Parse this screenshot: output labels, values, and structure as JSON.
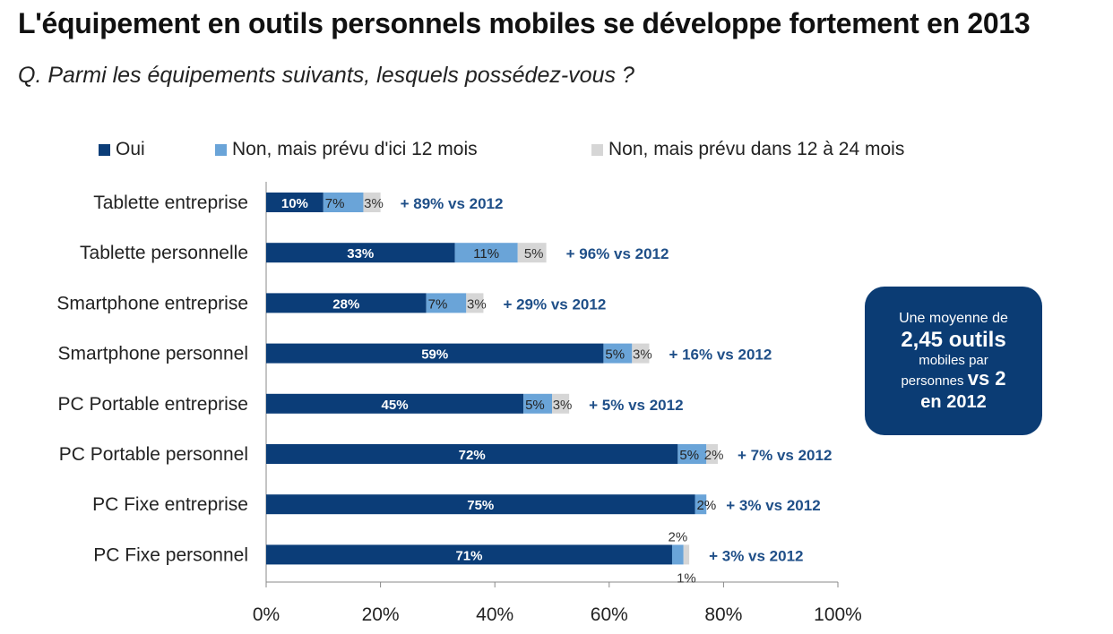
{
  "title": "L'équipement en outils personnels mobiles se développe fortement en 2013",
  "subtitle": "Q. Parmi les équipements suivants, lesquels possédez-vous ?",
  "callout": {
    "line1": "Une moyenne de",
    "line2": "2,45 outils",
    "line3": "mobiles par",
    "line4_prefix": "personnes",
    "line4_bold": "vs 2",
    "line5": "en 2012"
  },
  "chart_data": {
    "type": "bar",
    "orientation": "horizontal",
    "stacked": true,
    "categories": [
      "Tablette entreprise",
      "Tablette personnelle",
      "Smartphone entreprise",
      "Smartphone personnel",
      "PC Portable entreprise",
      "PC Portable personnel",
      "PC Fixe entreprise",
      "PC Fixe personnel"
    ],
    "series": [
      {
        "name": "Oui",
        "color": "#0b3d78",
        "values": [
          10,
          33,
          28,
          59,
          45,
          72,
          75,
          71
        ],
        "labels": [
          "10%",
          "33%",
          "28%",
          "59%",
          "45%",
          "72%",
          "75%",
          "71%"
        ]
      },
      {
        "name": "Non, mais prévu d'ici 12 mois",
        "color": "#6aa4d8",
        "values": [
          7,
          11,
          7,
          5,
          5,
          5,
          2,
          2
        ],
        "labels": [
          "7%",
          "11%",
          "7%",
          "5%",
          "5%",
          "5%",
          "2%",
          "2%"
        ]
      },
      {
        "name": "Non, mais prévu dans 12 à 24 mois",
        "color": "#d6d6d6",
        "values": [
          3,
          5,
          3,
          3,
          3,
          2,
          0,
          1
        ],
        "labels": [
          "3%",
          "5%",
          "3%",
          "3%",
          "3%",
          "2%",
          "",
          "1%"
        ]
      }
    ],
    "annotations": [
      "+ 89% vs 2012",
      "+ 96% vs 2012",
      "+ 29% vs 2012",
      "+ 16% vs 2012",
      "+ 5% vs 2012",
      "+ 7% vs 2012",
      "+ 3% vs 2012",
      "+ 3% vs 2012"
    ],
    "xlim": [
      0,
      100
    ],
    "xticks": [
      "0%",
      "20%",
      "40%",
      "60%",
      "80%",
      "100%"
    ],
    "grid": false,
    "legend_position": "top"
  }
}
